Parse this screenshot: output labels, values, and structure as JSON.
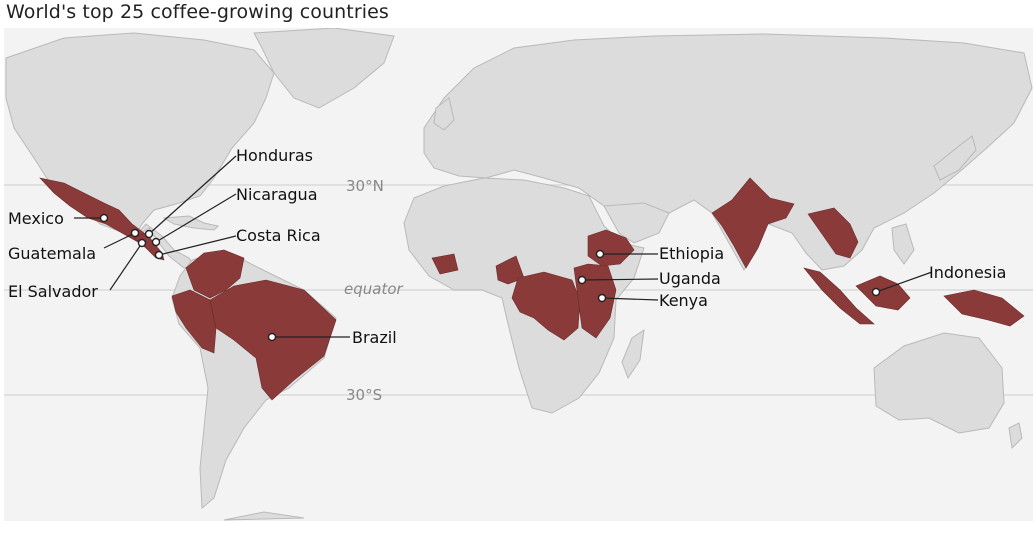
{
  "title": "World's top 25 coffee-growing countries",
  "colors": {
    "ocean": "#f3f3f3",
    "land": "#dcdcdc",
    "border": "#b9b9b9",
    "coffee": "#8b3a3a",
    "gridline": "#d9d9d9"
  },
  "gridlines": {
    "north": "30°N",
    "equator": "equator",
    "south": "30°S"
  },
  "countries": {
    "mexico": "Mexico",
    "guatemala": "Guatemala",
    "el_salvador": "El Salvador",
    "honduras": "Honduras",
    "nicaragua": "Nicaragua",
    "costa_rica": "Costa Rica",
    "brazil": "Brazil",
    "ethiopia": "Ethiopia",
    "uganda": "Uganda",
    "kenya": "Kenya",
    "indonesia": "Indonesia"
  }
}
